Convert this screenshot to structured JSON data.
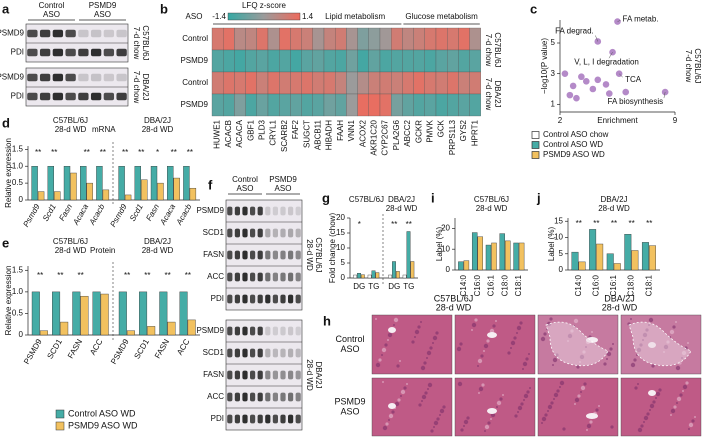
{
  "figure": {
    "a": {
      "letter": "a",
      "columns": [
        [
          "Control",
          "ASO"
        ],
        [
          "PSMD9",
          "ASO"
        ]
      ],
      "blocks": [
        {
          "bands": [
            "PSMD9",
            "PDI"
          ],
          "strain": [
            "C57BL/6J",
            "7-d chow"
          ]
        },
        {
          "bands": [
            "PSMD9",
            "PDI"
          ],
          "strain": [
            "DBA/2J",
            "7-d chow"
          ]
        }
      ]
    },
    "f": {
      "letter": "f",
      "columns": [
        [
          "Control",
          "ASO"
        ],
        [
          "PSMD9",
          "ASO"
        ]
      ],
      "blocks": [
        {
          "bands": [
            "PSMD9",
            "SCD1",
            "FASN",
            "ACC",
            "PDI"
          ],
          "strain": [
            "C57BL/6J",
            "28-d WD"
          ]
        },
        {
          "bands": [
            "PSMD9",
            "SCD1",
            "FASN",
            "ACC",
            "PDI"
          ],
          "strain": [
            "DBA/2J",
            "28-d WD"
          ]
        }
      ]
    },
    "h": {
      "letter": "h",
      "columns": [
        [
          "C57BL/6J",
          "28-d WD"
        ],
        [
          "DBA/2J",
          "28-d WD"
        ]
      ],
      "rows": [
        [
          "Control",
          "ASO"
        ],
        [
          "PSMD9",
          "ASO"
        ]
      ]
    },
    "legend": [
      {
        "name": "Control ASO chow",
        "color": "#ffffff"
      },
      {
        "name": "Control ASO WD",
        "color": "#45aca6"
      },
      {
        "name": "PSMD9 ASO WD",
        "color": "#f2c15f"
      }
    ]
  },
  "chart_data": [
    {
      "type": "heatmap",
      "panel": "b",
      "row_header": "ASO",
      "colorbar_label": "LFQ z-score",
      "clim": [
        -1.4,
        1.4
      ],
      "colormap": [
        "#36a9a4",
        "#9b9b9b",
        "#ee6b5d"
      ],
      "column_groups": [
        {
          "label": "Lipid metabolism",
          "columns": [
            "HUWE1",
            "ACACB",
            "ACACA",
            "GBF1",
            "PLD3",
            "CRYL1",
            "SCARB2",
            "FAF2",
            "SUGCT",
            "ABCB11",
            "HIBADH",
            "FAAH",
            "VNN1",
            "ACOX2",
            "AKR1C20",
            "CYP2C67",
            "PLA2G6"
          ]
        },
        {
          "label": "Glucose metabolism",
          "columns": [
            "ABCC2",
            "GCKR",
            "PMVK",
            "GCK",
            "PRPS1L3",
            "GYS2",
            "HPRT1"
          ]
        }
      ],
      "row_groups": [
        {
          "label": [
            "C57BL/6J",
            "7-d chow"
          ],
          "rows": [
            {
              "name": "Control",
              "values": [
                1.0,
                1.2,
                0.5,
                0.6,
                1.1,
                0.3,
                1.2,
                1.0,
                0.8,
                0.2,
                0.7,
                0.9,
                0.2,
                -0.4,
                -0.2,
                0.1,
                0.9,
                0.6,
                0.8,
                1.0,
                1.1,
                1.0,
                1.2,
                0.3
              ]
            },
            {
              "name": "PSMD9",
              "values": [
                -1.0,
                -1.1,
                -1.2,
                -1.0,
                -0.9,
                -1.1,
                -1.0,
                -1.2,
                -0.9,
                -0.8,
                -1.0,
                -1.1,
                -0.6,
                -1.2,
                -0.8,
                -1.1,
                -1.0,
                -1.0,
                -1.0,
                -1.1,
                -0.9,
                -0.8,
                -1.0,
                -0.9
              ]
            }
          ]
        },
        {
          "label": [
            "DBA/2J",
            "7-d chow"
          ],
          "rows": [
            {
              "name": "Control",
              "values": [
                0.9,
                1.1,
                1.0,
                1.2,
                0.8,
                1.1,
                0.9,
                1.0,
                1.1,
                0.9,
                1.0,
                0.7,
                0,
                0.4,
                0.8,
                0.9,
                0.8,
                1.0,
                1.2,
                1.0,
                0.9,
                1.1,
                0.8,
                0.9
              ]
            },
            {
              "name": "PSMD9",
              "values": [
                -0.9,
                -1.0,
                -0.4,
                -1.1,
                -0.7,
                -1.0,
                -0.9,
                -0.8,
                -1.0,
                -0.9,
                -0.6,
                -0.8,
                0,
                1.3,
                1.3,
                1.2,
                -0.5,
                -0.8,
                -1.0,
                -0.9,
                -1.1,
                -1.0,
                -0.9,
                -1.0
              ]
            }
          ]
        }
      ]
    },
    {
      "type": "scatter",
      "panel": "c",
      "xlabel": "Enrichment",
      "ylabel": "−log10(P value)",
      "strain": [
        "C57BL/6J",
        "7-d chow"
      ],
      "color": "#b48ac8",
      "x": [
        4.3,
        5.5,
        5.2,
        5.6,
        8.4,
        2.3,
        2.8,
        3.3,
        3.6,
        4.0,
        4.3,
        2.6,
        3.0,
        4.8,
        5.0,
        6.0
      ],
      "y": [
        5.1,
        6.4,
        4.4,
        3.0,
        1.8,
        3.0,
        2.2,
        2.8,
        2.5,
        2.0,
        2.6,
        1.6,
        1.4,
        2.3,
        1.7,
        1.8
      ],
      "labels": [
        "FA degrad.",
        "FA metab.",
        "V, L, I degradation",
        "TCA",
        "FA biosynthesis",
        null,
        null,
        null,
        null,
        null,
        null,
        null,
        null,
        null,
        null,
        null
      ],
      "xlim": [
        2,
        9
      ],
      "ylim": [
        0.5,
        6.5
      ],
      "xticks": [
        2,
        9
      ],
      "yticks": [
        1,
        3,
        5
      ]
    },
    {
      "type": "bar",
      "panel": "d",
      "ylabel": "Relative expression",
      "note": "mRNA",
      "ylim": [
        0,
        1.6
      ],
      "yticks": [
        0,
        0.5,
        {
          "value": 1,
          "label": "1.0"
        },
        1.5
      ],
      "groups": [
        {
          "title": [
            "C57BL/6J",
            "28-d WD"
          ],
          "categories": [
            "Psmd9",
            "Scd1",
            "Fasn",
            "Acaca",
            "Acacb"
          ],
          "significance": [
            "**",
            "**",
            null,
            "**",
            "**"
          ],
          "series": [
            {
              "color": "#45aca6",
              "values": [
                1.0,
                1.0,
                1.0,
                1.0,
                1.0
              ]
            },
            {
              "color": "#f2c15f",
              "values": [
                0.25,
                0.25,
                0.8,
                0.5,
                0.3
              ]
            }
          ]
        },
        {
          "title": [
            "DBA/2J",
            "28-d WD"
          ],
          "categories": [
            "Psmd9",
            "Scd1",
            "Fasn",
            "Acaca",
            "Acacb"
          ],
          "significance": [
            "**",
            "**",
            "*",
            "**",
            "**"
          ],
          "series": [
            {
              "color": "#45aca6",
              "values": [
                1.0,
                1.0,
                1.0,
                1.0,
                1.0
              ]
            },
            {
              "color": "#f2c15f",
              "values": [
                0.15,
                0.6,
                0.5,
                0.65,
                0.35
              ]
            }
          ]
        }
      ]
    },
    {
      "type": "bar",
      "panel": "e",
      "ylabel": "Relative expression",
      "note": "Protein",
      "legend": [
        "Control ASO WD",
        "PSMD9 ASO WD"
      ],
      "ylim": [
        0,
        1.6
      ],
      "yticks": [
        0,
        0.5,
        {
          "value": 1,
          "label": "1.0"
        },
        1.5
      ],
      "groups": [
        {
          "title": [
            "C57BL/6J",
            "28-d WD"
          ],
          "categories": [
            "PSMD9",
            "SCD1",
            "FASN",
            "ACC"
          ],
          "significance": [
            "**",
            "**",
            "**",
            null
          ],
          "series": [
            {
              "color": "#45aca6",
              "values": [
                1.0,
                1.0,
                1.0,
                1.0
              ]
            },
            {
              "color": "#f2c15f",
              "values": [
                0.1,
                0.3,
                0.9,
                0.95
              ]
            }
          ]
        },
        {
          "title": [
            "DBA/2J",
            "28-d WD"
          ],
          "categories": [
            "PSMD9",
            "SCD1",
            "FASN",
            "ACC"
          ],
          "significance": [
            "**",
            "**",
            "**",
            "**"
          ],
          "series": [
            {
              "color": "#45aca6",
              "values": [
                1.0,
                1.0,
                1.0,
                1.0
              ]
            },
            {
              "color": "#f2c15f",
              "values": [
                0.1,
                0.2,
                0.3,
                0.35
              ]
            }
          ]
        }
      ]
    },
    {
      "type": "bar",
      "panel": "g",
      "ylabel": "Fold change (chow)",
      "ylim": [
        0,
        20
      ],
      "yticks": [
        0,
        5,
        10,
        15,
        20
      ],
      "groups": [
        {
          "title": [
            "C57BL/6J"
          ],
          "categories": [
            "DG",
            "TG"
          ],
          "significance": [
            "*",
            null
          ],
          "series": [
            {
              "color": "#ffffff",
              "values": [
                1,
                1
              ]
            },
            {
              "color": "#45aca6",
              "values": [
                1.6,
                2.4
              ]
            },
            {
              "color": "#f2c15f",
              "values": [
                1.1,
                1.8
              ]
            }
          ]
        },
        {
          "title": [
            "DBA/2J",
            "28-d WD"
          ],
          "categories": [
            "DG",
            "TG"
          ],
          "significance": [
            "**",
            "**"
          ],
          "series": [
            {
              "color": "#ffffff",
              "values": [
                1,
                1
              ]
            },
            {
              "color": "#45aca6",
              "values": [
                5.5,
                15.5
              ]
            },
            {
              "color": "#f2c15f",
              "values": [
                2.2,
                5.5
              ]
            }
          ]
        }
      ]
    },
    {
      "type": "bar",
      "panel": "i",
      "ylabel": "Label (%)",
      "ylim": [
        0,
        25
      ],
      "yticks": [
        0,
        10,
        20
      ],
      "groups": [
        {
          "title": [
            "C57BL/6J",
            "28-d WD"
          ],
          "categories": [
            "C14:0",
            "C16:0",
            "C16:1",
            "C18:0",
            "C18:1"
          ],
          "series": [
            {
              "color": "#45aca6",
              "values": [
                4,
                18,
                12,
                17.5,
                13
              ]
            },
            {
              "color": "#f2c15f",
              "values": [
                4.5,
                16,
                13,
                14,
                13
              ]
            }
          ]
        }
      ]
    },
    {
      "type": "bar",
      "panel": "j",
      "ylabel": "Label (%)",
      "ylim": [
        0,
        16
      ],
      "yticks": [
        0,
        5,
        10,
        15
      ],
      "groups": [
        {
          "title": [
            "DBA/2J",
            "28-d WD"
          ],
          "categories": [
            "C14:0",
            "C16:0",
            "C16:1",
            "C18:0",
            "C18:1"
          ],
          "significance": [
            "**",
            "**",
            "**",
            "**",
            "**"
          ],
          "series": [
            {
              "color": "#45aca6",
              "values": [
                5.5,
                12.5,
                5,
                11,
                8.5
              ]
            },
            {
              "color": "#f2c15f",
              "values": [
                2.5,
                8,
                2,
                6,
                7.5
              ]
            }
          ]
        }
      ]
    }
  ]
}
